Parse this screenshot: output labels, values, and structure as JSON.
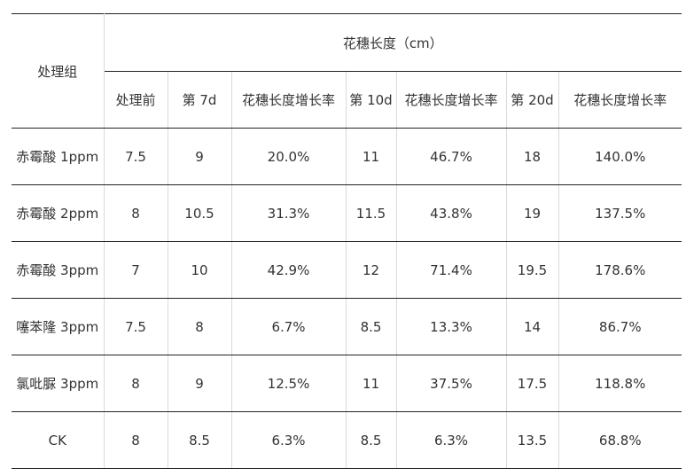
{
  "table": {
    "group_header": "处理组",
    "span_header": "花穗长度（cm）",
    "sub_headers": [
      "处理前",
      "第 7d",
      "花穗长度增长率",
      "第 10d",
      "花穗长度增长率",
      "第 20d",
      "花穗长度增长率"
    ],
    "rows": [
      {
        "group": "赤霉酸 1ppm",
        "values": [
          "7.5",
          "9",
          "20.0%",
          "11",
          "46.7%",
          "18",
          "140.0%"
        ]
      },
      {
        "group": "赤霉酸 2ppm",
        "values": [
          "8",
          "10.5",
          "31.3%",
          "11.5",
          "43.8%",
          "19",
          "137.5%"
        ]
      },
      {
        "group": "赤霉酸 3ppm",
        "values": [
          "7",
          "10",
          "42.9%",
          "12",
          "71.4%",
          "19.5",
          "178.6%"
        ]
      },
      {
        "group": "噻苯隆 3ppm",
        "values": [
          "7.5",
          "8",
          "6.7%",
          "8.5",
          "13.3%",
          "14",
          "86.7%"
        ]
      },
      {
        "group": "氯吡脲 3ppm",
        "values": [
          "8",
          "9",
          "12.5%",
          "11",
          "37.5%",
          "17.5",
          "118.8%"
        ]
      },
      {
        "group": "CK",
        "values": [
          "8",
          "8.5",
          "6.3%",
          "8.5",
          "6.3%",
          "13.5",
          "68.8%"
        ]
      }
    ]
  }
}
